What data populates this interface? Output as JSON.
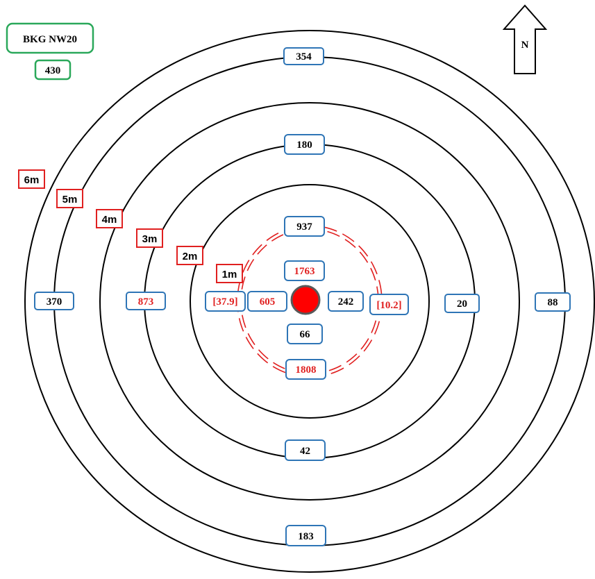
{
  "colors": {
    "ring": "#000000",
    "measure_border": "#2e75b6",
    "label_border": "#e02020",
    "bkg_border": "#2aa85a",
    "red_text": "#e02020",
    "black_text": "#000000",
    "source_fill": "#ff0000",
    "source_stroke": "#595959",
    "dashed_ring": "#e02020"
  },
  "background": {
    "label": "BKG NW20",
    "value": "430"
  },
  "north_arrow": {
    "icon": "north-arrow-icon",
    "label": "N"
  },
  "ring_labels": [
    "1m",
    "2m",
    "3m",
    "4m",
    "5m",
    "6m"
  ],
  "measurements": {
    "north": {
      "6m": "354",
      "4m": "180",
      "2m": "937"
    },
    "south": {
      "2m": "66",
      "4m": "42",
      "6m": "183"
    },
    "west": {
      "1m": "605",
      "3m": "873",
      "5m": "370"
    },
    "east": {
      "1m": "242",
      "3m": "20",
      "5m": "88"
    },
    "inner_north": "1763",
    "inner_south": "1808",
    "inner_west": "[37.9]",
    "inner_east": "[10.2]"
  }
}
